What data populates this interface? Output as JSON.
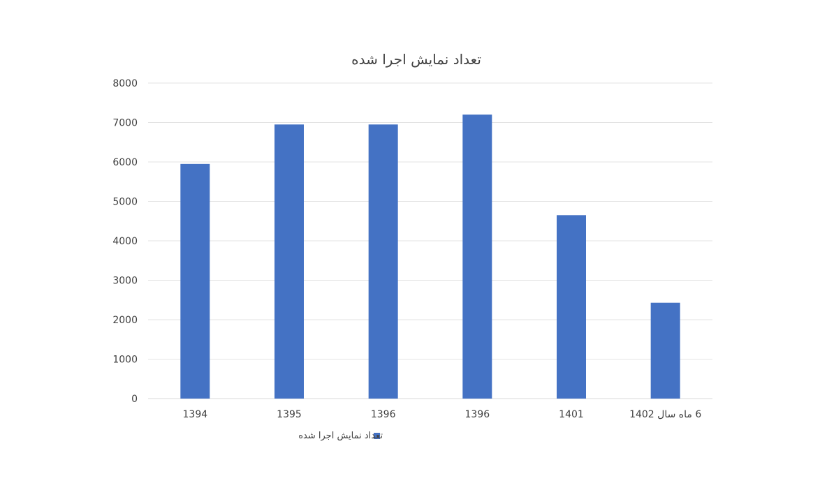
{
  "chart_data": {
    "type": "bar",
    "title": "تعداد نمایش اجرا شده",
    "xlabel": "",
    "ylabel": "",
    "categories": [
      "1394",
      "1395",
      "1396",
      "1396",
      "1401",
      "6 ماه سال 1402"
    ],
    "series": [
      {
        "name": "تعداد نمایش اجرا شده",
        "values": [
          5950,
          6950,
          6950,
          7200,
          4650,
          2430
        ],
        "color": "#4472C4"
      }
    ],
    "ylim": [
      0,
      8000
    ],
    "yticks": [
      "0",
      "1000",
      "2000",
      "3000",
      "4000",
      "5000",
      "6000",
      "7000",
      "8000"
    ],
    "grid": true,
    "legend_position": "bottom"
  }
}
